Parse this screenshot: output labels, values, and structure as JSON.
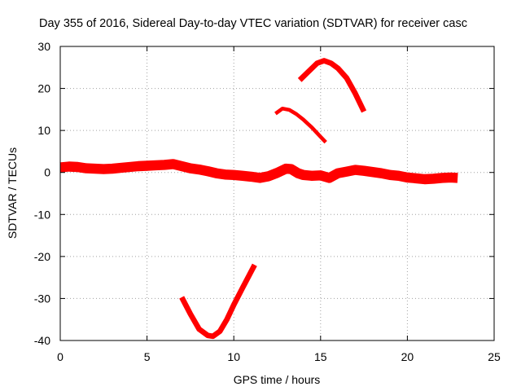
{
  "chart_data": {
    "type": "line",
    "title": "Day 355 of 2016, Sidereal Day-to-day VTEC variation (SDTVAR) for receiver casc",
    "xlabel": "GPS time / hours",
    "ylabel": "SDTVAR / TECUs",
    "xlim": [
      0,
      25
    ],
    "ylim": [
      -40,
      30
    ],
    "grid": true,
    "legend": "none",
    "x_ticks": [
      {
        "value": 0,
        "label": "0"
      },
      {
        "value": 5,
        "label": "5"
      },
      {
        "value": 10,
        "label": "10"
      },
      {
        "value": 15,
        "label": "15"
      },
      {
        "value": 20,
        "label": "20"
      },
      {
        "value": 25,
        "label": "25"
      }
    ],
    "y_ticks": [
      {
        "value": 30,
        "label": "30"
      },
      {
        "value": 20,
        "label": "20"
      },
      {
        "value": 10,
        "label": "10"
      },
      {
        "value": 0,
        "label": "0"
      },
      {
        "value": -10,
        "label": "-10"
      },
      {
        "value": -20,
        "label": "-20"
      },
      {
        "value": -30,
        "label": "-30"
      },
      {
        "value": -40,
        "label": "-40"
      }
    ],
    "series_color": "#ff0000",
    "series": [
      {
        "name": "main-track",
        "band_width": 2.4,
        "x": [
          0.0,
          0.5,
          1.0,
          1.5,
          2.0,
          2.5,
          3.0,
          3.5,
          4.0,
          4.5,
          5.0,
          5.5,
          6.0,
          6.5,
          7.0,
          7.5,
          8.0,
          8.5,
          9.0,
          9.5,
          10.0,
          10.5,
          11.0,
          11.5,
          12.0,
          12.5,
          13.0,
          13.3,
          13.7,
          14.0,
          14.5,
          15.0,
          15.5,
          16.0,
          16.5,
          17.0,
          17.5,
          18.0,
          18.5,
          19.0,
          19.5,
          20.0,
          20.5,
          21.0,
          21.5,
          22.0,
          22.5,
          22.9
        ],
        "y": [
          1.2,
          1.4,
          1.3,
          1.0,
          0.9,
          0.8,
          0.9,
          1.1,
          1.3,
          1.5,
          1.6,
          1.7,
          1.8,
          2.0,
          1.5,
          1.0,
          0.7,
          0.3,
          -0.2,
          -0.5,
          -0.6,
          -0.8,
          -1.0,
          -1.3,
          -0.9,
          -0.1,
          0.9,
          0.8,
          -0.2,
          -0.6,
          -0.8,
          -0.7,
          -1.3,
          -0.2,
          0.2,
          0.6,
          0.4,
          0.1,
          -0.2,
          -0.6,
          -0.8,
          -1.2,
          -1.4,
          -1.6,
          -1.5,
          -1.3,
          -1.2,
          -1.3
        ]
      },
      {
        "name": "lower-arc",
        "band_width": 1.3,
        "x": [
          7.0,
          7.5,
          8.0,
          8.5,
          8.8,
          9.2,
          9.6,
          10.0,
          10.5,
          11.2
        ],
        "y": [
          -29.7,
          -33.7,
          -37.3,
          -38.8,
          -39.0,
          -37.8,
          -35.0,
          -31.5,
          -27.5,
          -22.0
        ]
      },
      {
        "name": "middle-arc",
        "band_width": 0.9,
        "x": [
          12.4,
          12.8,
          13.2,
          13.6,
          14.0,
          14.5,
          15.0,
          15.3
        ],
        "y": [
          14.0,
          15.2,
          14.9,
          13.9,
          12.6,
          10.7,
          8.5,
          7.2
        ]
      },
      {
        "name": "upper-arc",
        "band_width": 1.3,
        "x": [
          13.8,
          14.3,
          14.8,
          15.2,
          15.6,
          16.0,
          16.5,
          17.0,
          17.5
        ],
        "y": [
          22.0,
          24.0,
          26.0,
          26.6,
          26.0,
          24.8,
          22.5,
          18.8,
          14.5
        ]
      }
    ]
  }
}
